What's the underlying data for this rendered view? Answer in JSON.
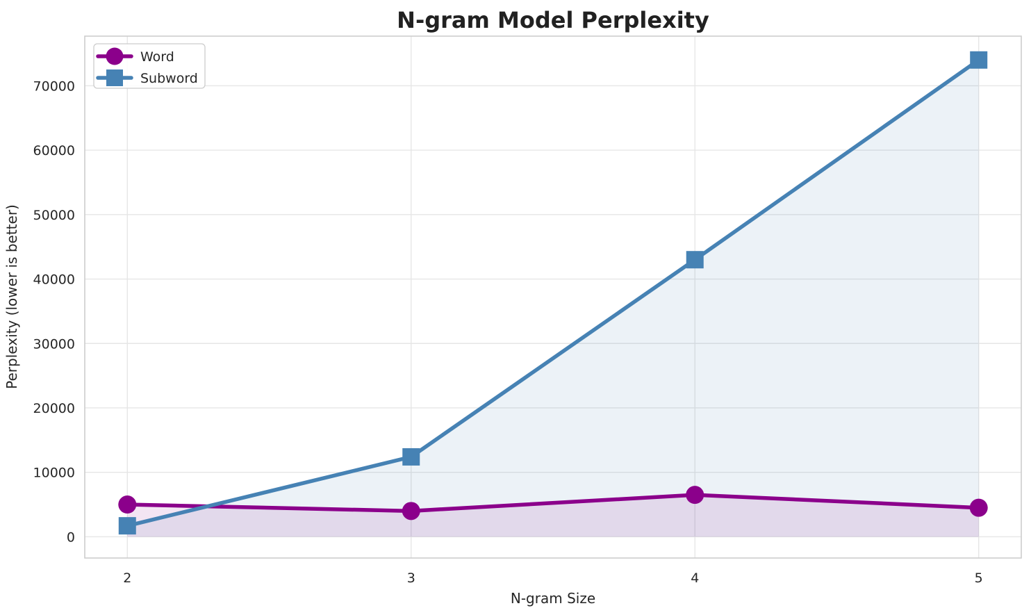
{
  "chart_data": {
    "type": "line",
    "title": "N-gram Model Perplexity",
    "xlabel": "N-gram Size",
    "ylabel": "Perplexity (lower is better)",
    "x": [
      2,
      3,
      4,
      5
    ],
    "series": [
      {
        "name": "Word",
        "color": "#8B008B",
        "marker": "circle",
        "values": [
          5000,
          4000,
          6500,
          4500
        ],
        "fill_to_zero": true,
        "fill_alpha": 0.1
      },
      {
        "name": "Subword",
        "color": "#4682B4",
        "marker": "square",
        "values": [
          1700,
          12400,
          43000,
          74000
        ],
        "fill_to_zero": true,
        "fill_alpha": 0.1
      }
    ],
    "xticks": {
      "values": [
        2,
        3,
        4,
        5
      ],
      "labels": [
        "2",
        "3",
        "4",
        "5"
      ]
    },
    "yticks": {
      "values": [
        0,
        10000,
        20000,
        30000,
        40000,
        50000,
        60000,
        70000
      ],
      "labels": [
        "0",
        "10000",
        "20000",
        "30000",
        "40000",
        "50000",
        "60000",
        "70000"
      ]
    },
    "xlim": [
      1.85,
      5.15
    ],
    "ylim": [
      -3300,
      77700
    ],
    "grid": true,
    "legend_position": "upper left"
  },
  "style": {
    "accent_purple": "#8B008B",
    "accent_blue": "#4682B4",
    "text_color": "#262626",
    "grid_color": "#E6E6E6",
    "spine_color": "#CDCDCD",
    "legend_border": "#CCCCCC",
    "background": "#FFFFFF"
  }
}
